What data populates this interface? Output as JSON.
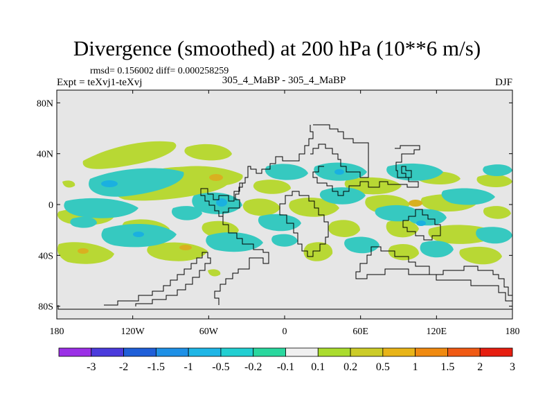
{
  "title": "Divergence (smoothed) at 200 hPa (10**6 m/s)",
  "stats": "rmsd= 0.156002 diff= 0.000258259",
  "experiment": "Expt = teXvj1-teXvj",
  "case": "305_4_MaBP - 305_4_MaBP",
  "season": "DJF",
  "colors": {
    "background": "#e6e6e6",
    "coast": "#000000",
    "levels": [
      "#8a2be2",
      "#2f3fe0",
      "#1f6fe0",
      "#1e9ee6",
      "#22c3dc",
      "#2bd6b4",
      "#b6e63a",
      "#cfd42a",
      "#e6b417",
      "#f0880d",
      "#f05014",
      "#e61e10"
    ],
    "positive_mid": "#b8d834",
    "positive_strong": "#d9b020",
    "negative_mid": "#36c9c0",
    "negative_strong": "#1ab0e0"
  },
  "colorbar": {
    "labels": [
      "-3",
      "-2",
      "-1.5",
      "-1",
      "-0.5",
      "-0.2",
      "-0.1",
      "0.1",
      "0.2",
      "0.5",
      "1",
      "1.5",
      "2",
      "3"
    ],
    "colors": [
      "#9b30e6",
      "#4b3bdc",
      "#1f5fd8",
      "#1e90e6",
      "#1fb6e6",
      "#22cfd2",
      "#2ad79e",
      "#f0f0f0",
      "#aadc2e",
      "#cccc28",
      "#e8b418",
      "#f08a10",
      "#f05a14",
      "#e61e10"
    ]
  },
  "map": {
    "lat_labels": [
      "80N",
      "40N",
      "0",
      "40S",
      "80S"
    ],
    "lat_values": [
      80,
      40,
      0,
      -40,
      -80
    ],
    "lon_labels": [
      "180",
      "120W",
      "60W",
      "0",
      "60E",
      "120E",
      "180"
    ],
    "lon_values": [
      -180,
      -120,
      -60,
      0,
      60,
      120,
      180
    ],
    "lat_range": [
      -90,
      90
    ],
    "lon_range": [
      -180,
      180
    ]
  }
}
